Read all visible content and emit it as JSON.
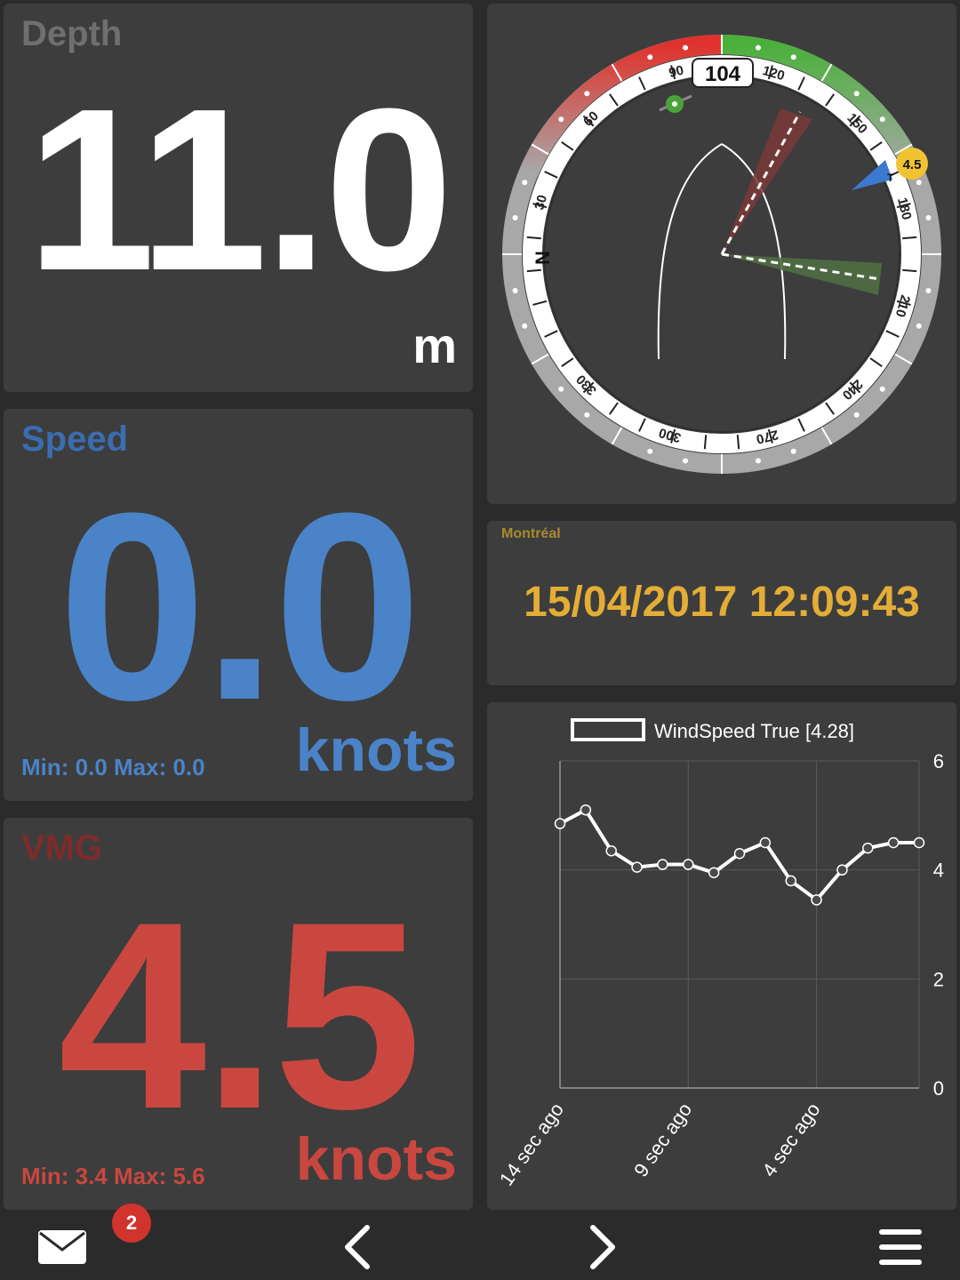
{
  "depth": {
    "title": "Depth",
    "value": "11.0",
    "unit": "m"
  },
  "speed": {
    "title": "Speed",
    "value": "0.0",
    "unit": "knots",
    "minmax": "Min: 0.0 Max: 0.0",
    "color": "#4a83c8"
  },
  "vmg": {
    "title": "VMG",
    "value": "4.5",
    "unit": "knots",
    "minmax": "Min: 3.4 Max: 5.6",
    "color": "#c9473f"
  },
  "wind_instrument": {
    "heading_label": "104",
    "speed_tag": "4.5",
    "tag_marker": "T",
    "north_label": "N",
    "compass_labels": [
      "30",
      "60",
      "90",
      "120",
      "150",
      "180",
      "210",
      "240",
      "270",
      "300",
      "330"
    ],
    "port_color": "#e0322c",
    "starboard_color": "#5ab04a",
    "tag_color": "#f1c232"
  },
  "clock": {
    "city": "Montréal",
    "datetime": "15/04/2017 12:09:43"
  },
  "chart_data": {
    "type": "line",
    "title": "",
    "legend": "WindSpeed True [4.28]",
    "x_tick_labels": [
      "14 sec ago",
      "9 sec ago",
      "4 sec ago"
    ],
    "y_tick_labels": [
      "0",
      "2",
      "4",
      "6"
    ],
    "ylim": [
      0,
      6
    ],
    "series": [
      {
        "name": "WindSpeed True [4.28]",
        "values": [
          4.85,
          5.1,
          4.35,
          4.05,
          4.1,
          4.1,
          3.95,
          4.3,
          4.5,
          3.8,
          3.45,
          4.0,
          4.4,
          4.5,
          4.5
        ]
      }
    ],
    "grid": true,
    "legend_position": "top"
  },
  "bottombar": {
    "mail_badge": "2"
  }
}
